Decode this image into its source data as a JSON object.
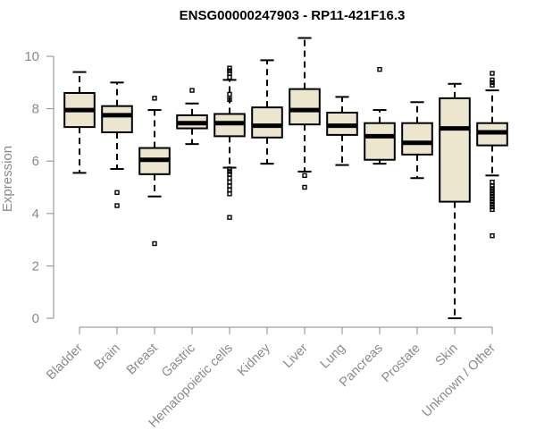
{
  "chart_data": {
    "type": "boxplot",
    "title": "ENSG00000247903 - RP11-421F16.3",
    "ylabel": "Expression",
    "xlabel": "",
    "ylim": [
      0,
      10.8
    ],
    "yticks": [
      0,
      2,
      4,
      6,
      8,
      10
    ],
    "box_color": "#ede6cf",
    "categories": [
      "Bladder",
      "Brain",
      "Breast",
      "Gastric",
      "Hematopoietic cells",
      "Kidney",
      "Liver",
      "Lung",
      "Pancreas",
      "Prostate",
      "Skin",
      "Unknown / Other"
    ],
    "boxes": [
      {
        "category": "Bladder",
        "min": 5.55,
        "q1": 7.3,
        "median": 7.95,
        "q3": 8.6,
        "max": 9.4,
        "outliers": []
      },
      {
        "category": "Brain",
        "min": 5.7,
        "q1": 7.1,
        "median": 7.75,
        "q3": 8.1,
        "max": 9.0,
        "outliers": [
          4.8,
          4.3
        ]
      },
      {
        "category": "Breast",
        "min": 4.65,
        "q1": 5.5,
        "median": 6.05,
        "q3": 6.5,
        "max": 7.95,
        "outliers": [
          8.4,
          2.85
        ]
      },
      {
        "category": "Gastric",
        "min": 6.65,
        "q1": 7.25,
        "median": 7.45,
        "q3": 7.75,
        "max": 8.2,
        "outliers": [
          8.7
        ]
      },
      {
        "category": "Hematopoietic cells",
        "min": 5.75,
        "q1": 6.95,
        "median": 7.45,
        "q3": 7.8,
        "max": 9.1,
        "outliers": [
          9.55,
          9.45,
          9.35,
          9.2,
          8.55,
          8.35,
          5.7,
          5.6,
          5.5,
          5.35,
          5.2,
          5.05,
          4.9,
          4.75,
          3.85
        ]
      },
      {
        "category": "Kidney",
        "min": 5.9,
        "q1": 6.9,
        "median": 7.35,
        "q3": 8.05,
        "max": 9.85,
        "outliers": []
      },
      {
        "category": "Liver",
        "min": 5.6,
        "q1": 7.4,
        "median": 7.95,
        "q3": 8.75,
        "max": 10.7,
        "outliers": [
          5.45,
          5.0
        ]
      },
      {
        "category": "Lung",
        "min": 5.85,
        "q1": 7.0,
        "median": 7.35,
        "q3": 7.85,
        "max": 8.45,
        "outliers": []
      },
      {
        "category": "Pancreas",
        "min": 5.9,
        "q1": 6.05,
        "median": 6.95,
        "q3": 7.45,
        "max": 7.95,
        "outliers": [
          9.5
        ]
      },
      {
        "category": "Prostate",
        "min": 5.35,
        "q1": 6.25,
        "median": 6.7,
        "q3": 7.45,
        "max": 8.25,
        "outliers": []
      },
      {
        "category": "Skin",
        "min": 0.0,
        "q1": 4.45,
        "median": 7.25,
        "q3": 8.4,
        "max": 8.95,
        "outliers": []
      },
      {
        "category": "Unknown / Other",
        "min": 5.45,
        "q1": 6.6,
        "median": 7.1,
        "q3": 7.45,
        "max": 8.7,
        "outliers": [
          9.35,
          9.1,
          9.0,
          8.9,
          5.2,
          5.05,
          4.95,
          4.85,
          4.75,
          4.65,
          4.55,
          4.45,
          4.35,
          4.25,
          4.15,
          3.15
        ]
      }
    ]
  }
}
